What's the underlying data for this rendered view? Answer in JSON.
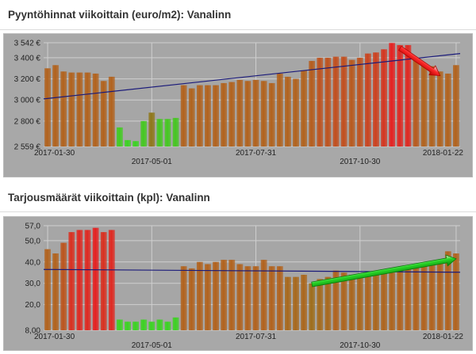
{
  "colors": {
    "panel": "#a8a8a8",
    "grid": "#cfcfcf",
    "trend": "#1a1a7a",
    "high": "#e62020",
    "mid": "#b2621c",
    "low": "#3ad421",
    "olive": "#8a7a18"
  },
  "icons": {
    "arrow_1": "red-down-trend-arrow",
    "arrow_2": "green-up-trend-arrow"
  },
  "chart_data": [
    {
      "type": "bar",
      "title": "Pyyntöhinnat viikoittain (euro/m2): Vanalinn",
      "xlabel": "",
      "ylabel": "",
      "ylim": [
        2559,
        3542
      ],
      "y_ticks": [
        {
          "value": 2559,
          "label": "2 559 €"
        },
        {
          "value": 2800,
          "label": "2 800 €"
        },
        {
          "value": 3000,
          "label": "3 000 €"
        },
        {
          "value": 3200,
          "label": "3 200 €"
        },
        {
          "value": 3400,
          "label": "3 400 €"
        },
        {
          "value": 3542,
          "label": "3 542 €"
        }
      ],
      "x_labels": [
        {
          "index": 0,
          "label": "2017-01-30"
        },
        {
          "index": 13,
          "label": "2017-05-01"
        },
        {
          "index": 26,
          "label": "2017-07-31"
        },
        {
          "index": 39,
          "label": "2017-10-30"
        },
        {
          "index": 51,
          "label": "2018-01-22"
        }
      ],
      "values": [
        3300,
        3330,
        3270,
        3260,
        3260,
        3260,
        3250,
        3180,
        3220,
        2740,
        2620,
        2610,
        2800,
        2880,
        2820,
        2820,
        2830,
        3140,
        3110,
        3140,
        3140,
        3140,
        3160,
        3170,
        3190,
        3180,
        3190,
        3180,
        3160,
        3250,
        3220,
        3200,
        3280,
        3370,
        3400,
        3400,
        3410,
        3410,
        3380,
        3400,
        3440,
        3450,
        3480,
        3540,
        3520,
        3520,
        3380,
        3340,
        3320,
        3270,
        3250,
        3330
      ],
      "trend": [
        3010,
        3440
      ],
      "arrow": {
        "from_index": 44,
        "from_value": 3490,
        "to_index": 49,
        "to_value": 3230,
        "color": "red"
      }
    },
    {
      "type": "bar",
      "title": "Tarjousmäärät viikoittain (kpl): Vanalinn",
      "xlabel": "",
      "ylabel": "",
      "ylim": [
        8,
        57
      ],
      "y_ticks": [
        {
          "value": 8,
          "label": "8,00"
        },
        {
          "value": 20,
          "label": "20,0"
        },
        {
          "value": 30,
          "label": "30,0"
        },
        {
          "value": 40,
          "label": "40,0"
        },
        {
          "value": 50,
          "label": "50,0"
        },
        {
          "value": 57,
          "label": "57,0"
        }
      ],
      "x_labels": [
        {
          "index": 0,
          "label": "2017-01-30"
        },
        {
          "index": 13,
          "label": "2017-05-01"
        },
        {
          "index": 26,
          "label": "2017-07-31"
        },
        {
          "index": 39,
          "label": "2017-10-30"
        },
        {
          "index": 51,
          "label": "2018-01-22"
        }
      ],
      "values": [
        46,
        44,
        49,
        54,
        55,
        55,
        56,
        54,
        55,
        13,
        12,
        12,
        13,
        12,
        13,
        12,
        14,
        38,
        37,
        40,
        39,
        40,
        41,
        41,
        39,
        38,
        38,
        41,
        38,
        38,
        33,
        33,
        34,
        30,
        32,
        33,
        36,
        35,
        34,
        34,
        35,
        34,
        35,
        35,
        37,
        38,
        38,
        39,
        40,
        41,
        45,
        44
      ],
      "trend": [
        36.5,
        35.2
      ],
      "arrow": {
        "from_index": 33,
        "from_value": 29.5,
        "to_index": 51,
        "to_value": 41.5,
        "color": "green"
      }
    }
  ]
}
